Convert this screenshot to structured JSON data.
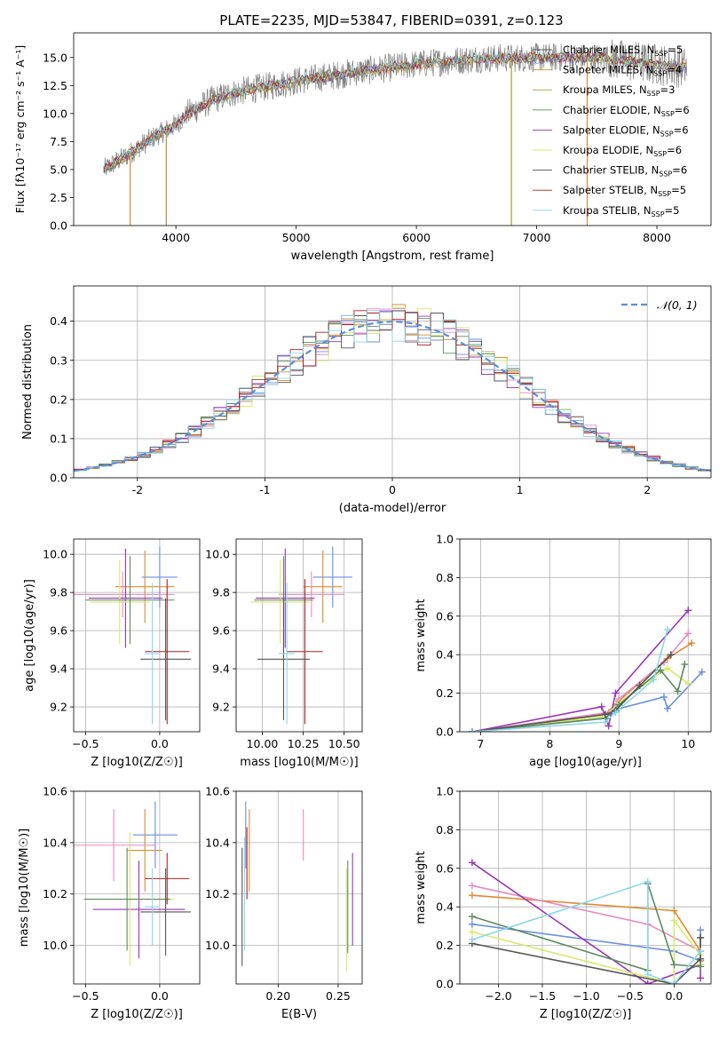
{
  "figure_title": "PLATE=2235, MJD=53847, FIBERID=0391, z=0.123",
  "colors": {
    "chabrier_miles": "#6a8fe0",
    "salpeter_miles": "#e08a2e",
    "kroupa_miles": "#a69a3a",
    "chabrier_elodie": "#5e8a5e",
    "salpeter_elodie": "#9a35b8",
    "kroupa_elodie": "#d8e86a",
    "chabrier_stelib": "#555555",
    "salpeter_stelib": "#b01e1e",
    "kroupa_stelib": "#8ad8e6",
    "pink": "#e58ac0",
    "data_spectrum": "#808080",
    "gauss": "#5b8fd8"
  },
  "chart_data": [
    {
      "id": "spectrum",
      "type": "line",
      "xlabel": "wavelength [Angstrom, rest frame]",
      "ylabel": "Flux [fλ10⁻¹⁷ erg cm⁻² s⁻¹ A⁻¹]",
      "xlim": [
        3150,
        8450
      ],
      "ylim": [
        0,
        17.2
      ],
      "xticks": [
        4000,
        5000,
        6000,
        7000,
        8000
      ],
      "yticks": [
        0.0,
        2.5,
        5.0,
        7.5,
        10.0,
        12.5,
        15.0
      ],
      "legend_position": "top-right",
      "legend": [
        {
          "label": "Chabrier MILES, N_SSP=5",
          "color": "#555555"
        },
        {
          "label": "Salpeter MILES, N_SSP=4",
          "color": "#e08a2e"
        },
        {
          "label": "Kroupa MILES, N_SSP=3",
          "color": "#a69a3a"
        },
        {
          "label": "Chabrier ELODIE, N_SSP=6",
          "color": "#5e8a5e"
        },
        {
          "label": "Salpeter ELODIE, N_SSP=6",
          "color": "#9a35b8"
        },
        {
          "label": "Kroupa ELODIE, N_SSP=6",
          "color": "#d8e86a"
        },
        {
          "label": "Chabrier STELIB, N_SSP=6",
          "color": "#555555"
        },
        {
          "label": "Salpeter STELIB, N_SSP=5",
          "color": "#b01e1e"
        },
        {
          "label": "Kroupa STELIB, N_SSP=5",
          "color": "#8ad8e6"
        }
      ],
      "continuum": [
        [
          3400,
          5.0
        ],
        [
          3600,
          6.3
        ],
        [
          3800,
          7.8
        ],
        [
          4000,
          9.0
        ],
        [
          4100,
          10.0
        ],
        [
          4300,
          11.2
        ],
        [
          4500,
          11.9
        ],
        [
          5000,
          12.9
        ],
        [
          5500,
          13.7
        ],
        [
          6000,
          14.4
        ],
        [
          6500,
          14.9
        ],
        [
          7000,
          15.0
        ],
        [
          7500,
          15.0
        ],
        [
          8000,
          14.4
        ],
        [
          8250,
          14.1
        ]
      ],
      "model_drops": [
        {
          "x": 3620,
          "color": "#e08a2e"
        },
        {
          "x": 3920,
          "color": "#a69a3a"
        },
        {
          "x": 6790,
          "color": "#a69a3a"
        },
        {
          "x": 7420,
          "color": "#e08a2e"
        }
      ]
    },
    {
      "id": "residuals",
      "type": "step",
      "xlabel": "(data-model)/error",
      "ylabel": "Normed distribution",
      "xlim": [
        -2.5,
        2.5
      ],
      "ylim": [
        0,
        0.49
      ],
      "xticks": [
        -2,
        -1,
        0,
        1,
        2
      ],
      "yticks": [
        0.0,
        0.1,
        0.2,
        0.3,
        0.4
      ],
      "legend": [
        {
          "label": "𝒩(0, 1)",
          "color": "#5b8fd8",
          "style": "dashed"
        }
      ],
      "legend_position": "top-right",
      "bin_width": 0.1,
      "mean": 0,
      "sigma": 1
    },
    {
      "id": "age_vs_Z",
      "type": "errorbar",
      "xlabel": "Z [log10(Z/Z☉)]",
      "ylabel": "age [log10(age/yr)]",
      "xlim": [
        -0.58,
        0.27
      ],
      "ylim": [
        9.07,
        10.08
      ],
      "xticks": [
        -0.5,
        0.0
      ],
      "xticklabels": [
        "−0.5",
        "0.0"
      ],
      "yticks": [
        9.2,
        9.4,
        9.6,
        9.8,
        10.0
      ],
      "points": [
        {
          "color": "#6a8fe0",
          "x": 0.0,
          "xerr": 0.12,
          "y": 9.88,
          "yerr": 0.16
        },
        {
          "color": "#e08a2e",
          "x": -0.1,
          "xerr": 0.2,
          "y": 9.83,
          "yerr": 0.19
        },
        {
          "color": "#e58ac0",
          "x": -0.25,
          "xerr": 0.35,
          "y": 9.79,
          "yerr": 0.12
        },
        {
          "color": "#9a35b8",
          "x": -0.23,
          "xerr": 0.25,
          "y": 9.77,
          "yerr": 0.26
        },
        {
          "color": "#d8e86a",
          "x": -0.27,
          "xerr": 0.2,
          "y": 9.75,
          "yerr": 0.22
        },
        {
          "color": "#5e8a5e",
          "x": -0.2,
          "xerr": 0.3,
          "y": 9.76,
          "yerr": 0.23
        },
        {
          "color": "#b01e1e",
          "x": 0.05,
          "xerr": 0.15,
          "y": 9.49,
          "yerr": 0.38
        },
        {
          "color": "#555555",
          "x": 0.04,
          "xerr": 0.17,
          "y": 9.45,
          "yerr": 0.32
        },
        {
          "color": "#8ad8e6",
          "x": -0.05,
          "xerr": 0.05,
          "y": 9.48,
          "yerr": 0.37
        }
      ]
    },
    {
      "id": "age_vs_mass",
      "type": "errorbar",
      "xlabel": "mass [log10(M/M☉)]",
      "ylabel": "",
      "xlim": [
        9.84,
        10.61
      ],
      "ylim": [
        9.07,
        10.08
      ],
      "xticks": [
        10.0,
        10.25,
        10.5
      ],
      "xticklabels": [
        "10.00",
        "10.25",
        "10.50"
      ],
      "yticks": [
        9.2,
        9.4,
        9.6,
        9.8,
        10.0
      ],
      "points": [
        {
          "color": "#6a8fe0",
          "x": 10.43,
          "xerr": 0.12,
          "y": 9.88,
          "yerr": 0.16
        },
        {
          "color": "#e08a2e",
          "x": 10.37,
          "xerr": 0.12,
          "y": 9.83,
          "yerr": 0.19
        },
        {
          "color": "#e58ac0",
          "x": 10.3,
          "xerr": 0.2,
          "y": 9.79,
          "yerr": 0.12
        },
        {
          "color": "#9a35b8",
          "x": 10.14,
          "xerr": 0.18,
          "y": 9.77,
          "yerr": 0.26
        },
        {
          "color": "#d8e86a",
          "x": 10.11,
          "xerr": 0.18,
          "y": 9.75,
          "yerr": 0.22
        },
        {
          "color": "#5e8a5e",
          "x": 10.13,
          "xerr": 0.18,
          "y": 9.76,
          "yerr": 0.23
        },
        {
          "color": "#b01e1e",
          "x": 10.26,
          "xerr": 0.11,
          "y": 9.49,
          "yerr": 0.38
        },
        {
          "color": "#555555",
          "x": 10.13,
          "xerr": 0.16,
          "y": 9.45,
          "yerr": 0.32
        },
        {
          "color": "#8ad8e6",
          "x": 10.15,
          "xerr": 0.05,
          "y": 9.48,
          "yerr": 0.37
        }
      ]
    },
    {
      "id": "weight_vs_age",
      "type": "line",
      "xlabel": "age [log10(age/yr)]",
      "ylabel": "mass weight",
      "xlim": [
        6.7,
        10.33
      ],
      "ylim": [
        0,
        1.0
      ],
      "xticks": [
        7,
        8,
        9,
        10
      ],
      "yticks": [
        0.0,
        0.2,
        0.4,
        0.6,
        0.8,
        1.0
      ],
      "yticklabels": [
        "0.0",
        "0.2",
        "0.4",
        "0.6",
        "0.8",
        "1.0"
      ],
      "series": [
        {
          "color": "#6a8fe0",
          "x": [
            6.88,
            8.8,
            9.0,
            9.65,
            9.7,
            10.2
          ],
          "y": [
            0.0,
            0.07,
            0.12,
            0.18,
            0.12,
            0.31
          ]
        },
        {
          "color": "#e08a2e",
          "x": [
            6.88,
            8.8,
            9.0,
            9.7,
            10.05
          ],
          "y": [
            0.0,
            0.09,
            0.16,
            0.38,
            0.46
          ]
        },
        {
          "color": "#e58ac0",
          "x": [
            6.88,
            8.85,
            9.0,
            9.65,
            10.0
          ],
          "y": [
            0.0,
            0.1,
            0.17,
            0.36,
            0.51
          ]
        },
        {
          "color": "#9a35b8",
          "x": [
            6.88,
            8.75,
            8.85,
            8.95,
            10.0
          ],
          "y": [
            0.0,
            0.13,
            0.03,
            0.2,
            0.63
          ]
        },
        {
          "color": "#d8e86a",
          "x": [
            6.88,
            8.8,
            9.0,
            9.7,
            10.0
          ],
          "y": [
            0.0,
            0.08,
            0.15,
            0.33,
            0.25
          ]
        },
        {
          "color": "#5e8a5e",
          "x": [
            6.88,
            8.8,
            9.0,
            9.6,
            9.85,
            9.95
          ],
          "y": [
            0.0,
            0.07,
            0.14,
            0.32,
            0.21,
            0.35
          ]
        },
        {
          "color": "#555555",
          "x": [
            6.88,
            8.8,
            8.95,
            9.3,
            9.75
          ],
          "y": [
            0.0,
            0.09,
            0.11,
            0.24,
            0.4
          ]
        },
        {
          "color": "#8ad8e6",
          "x": [
            6.88,
            8.8,
            8.95,
            9.5,
            9.7
          ],
          "y": [
            0.0,
            0.05,
            0.1,
            0.27,
            0.53
          ]
        }
      ]
    },
    {
      "id": "mass_vs_Z",
      "type": "errorbar",
      "xlabel": "Z [log10(Z/Z☉)]",
      "ylabel": "mass [log10(M/M☉)]",
      "xlim": [
        -0.58,
        0.27
      ],
      "ylim": [
        9.85,
        10.6
      ],
      "xticks": [
        -0.5,
        0.0
      ],
      "xticklabels": [
        "−0.5",
        "0.0"
      ],
      "yticks": [
        10.0,
        10.2,
        10.4,
        10.6
      ],
      "points": [
        {
          "color": "#6a8fe0",
          "x": -0.03,
          "xerr": 0.15,
          "y": 10.43,
          "yerr": 0.13
        },
        {
          "color": "#e08a2e",
          "x": -0.1,
          "xerr": 0.12,
          "y": 10.37,
          "yerr": 0.16
        },
        {
          "color": "#e58ac0",
          "x": -0.31,
          "xerr": 0.28,
          "y": 10.39,
          "yerr": 0.14
        },
        {
          "color": "#9a35b8",
          "x": -0.14,
          "xerr": 0.31,
          "y": 10.14,
          "yerr": 0.19
        },
        {
          "color": "#d8e86a",
          "x": -0.2,
          "xerr": 0.3,
          "y": 10.18,
          "yerr": 0.26
        },
        {
          "color": "#5e8a5e",
          "x": -0.22,
          "xerr": 0.29,
          "y": 10.18,
          "yerr": 0.2
        },
        {
          "color": "#b01e1e",
          "x": 0.05,
          "xerr": 0.15,
          "y": 10.26,
          "yerr": 0.1
        },
        {
          "color": "#555555",
          "x": 0.04,
          "xerr": 0.17,
          "y": 10.13,
          "yerr": 0.17
        },
        {
          "color": "#8ad8e6",
          "x": -0.05,
          "xerr": 0.05,
          "y": 10.15,
          "yerr": 0.15
        }
      ]
    },
    {
      "id": "mass_vs_EBV",
      "type": "errorbar",
      "xlabel": "E(B-V)",
      "ylabel": "",
      "xlim": [
        0.165,
        0.27
      ],
      "ylim": [
        9.85,
        10.6
      ],
      "xticks": [
        0.2,
        0.25
      ],
      "xticklabels": [
        "0.20",
        "0.25"
      ],
      "yticks": [
        10.0,
        10.2,
        10.4,
        10.6
      ],
      "points": [
        {
          "color": "#6a8fe0",
          "x": 0.173,
          "xerr": 0,
          "y": 10.43,
          "yerr": 0.13
        },
        {
          "color": "#e08a2e",
          "x": 0.176,
          "xerr": 0,
          "y": 10.37,
          "yerr": 0.16
        },
        {
          "color": "#e58ac0",
          "x": 0.221,
          "xerr": 0,
          "y": 10.43,
          "yerr": 0.1
        },
        {
          "color": "#9a35b8",
          "x": 0.262,
          "xerr": 0,
          "y": 10.18,
          "yerr": 0.18
        },
        {
          "color": "#d8e86a",
          "x": 0.257,
          "xerr": 0,
          "y": 10.1,
          "yerr": 0.2
        },
        {
          "color": "#5e8a5e",
          "x": 0.258,
          "xerr": 0,
          "y": 10.15,
          "yerr": 0.18
        },
        {
          "color": "#b01e1e",
          "x": 0.174,
          "xerr": 0,
          "y": 10.32,
          "yerr": 0.14
        },
        {
          "color": "#555555",
          "x": 0.17,
          "xerr": 0,
          "y": 10.15,
          "yerr": 0.23
        },
        {
          "color": "#8ad8e6",
          "x": 0.172,
          "xerr": 0,
          "y": 10.2,
          "yerr": 0.22
        }
      ]
    },
    {
      "id": "weight_vs_Z",
      "type": "line",
      "xlabel": "Z [log10(Z/Z☉)]",
      "ylabel": "mass weight",
      "xlim": [
        -2.44,
        0.42
      ],
      "ylim": [
        0,
        1.0
      ],
      "xticks": [
        -2.0,
        -1.5,
        -1.0,
        -0.5,
        0.0
      ],
      "xticklabels": [
        "−2.0",
        "−1.5",
        "−1.0",
        "−0.5",
        "0.0"
      ],
      "yticks": [
        0.0,
        0.2,
        0.4,
        0.6,
        0.8,
        1.0
      ],
      "yticklabels": [
        "0.0",
        "0.2",
        "0.4",
        "0.6",
        "0.8",
        "1.0"
      ],
      "series": [
        {
          "color": "#6a8fe0",
          "x": [
            -2.3,
            0.0,
            0.3,
            0.3
          ],
          "y": [
            0.31,
            0.17,
            0.12,
            0.28
          ]
        },
        {
          "color": "#e08a2e",
          "x": [
            -2.3,
            0.0,
            0.3,
            0.3
          ],
          "y": [
            0.46,
            0.38,
            0.17,
            0.12
          ]
        },
        {
          "color": "#e58ac0",
          "x": [
            -2.3,
            -0.3,
            0.3,
            0.3
          ],
          "y": [
            0.51,
            0.31,
            0.17,
            0.1
          ]
        },
        {
          "color": "#9a35b8",
          "x": [
            -2.3,
            -0.3,
            0.3,
            0.3
          ],
          "y": [
            0.63,
            0.0,
            0.1,
            0.03
          ]
        },
        {
          "color": "#d8e86a",
          "x": [
            -2.3,
            0.0,
            0.0,
            0.3,
            0.3
          ],
          "y": [
            0.27,
            0.0,
            0.33,
            0.15,
            0.1
          ]
        },
        {
          "color": "#5e8a5e",
          "x": [
            -2.3,
            -0.3,
            -0.3,
            0.0,
            0.3,
            0.3
          ],
          "y": [
            0.35,
            0.07,
            0.52,
            0.1,
            0.09,
            0.24
          ]
        },
        {
          "color": "#555555",
          "x": [
            -2.3,
            0.0,
            0.3,
            0.3
          ],
          "y": [
            0.21,
            0.0,
            0.13,
            0.24
          ]
        },
        {
          "color": "#8ad8e6",
          "x": [
            -2.3,
            -0.3,
            -0.3,
            0.0,
            0.3
          ],
          "y": [
            0.23,
            0.53,
            0.05,
            0.0,
            0.17
          ]
        }
      ]
    }
  ]
}
